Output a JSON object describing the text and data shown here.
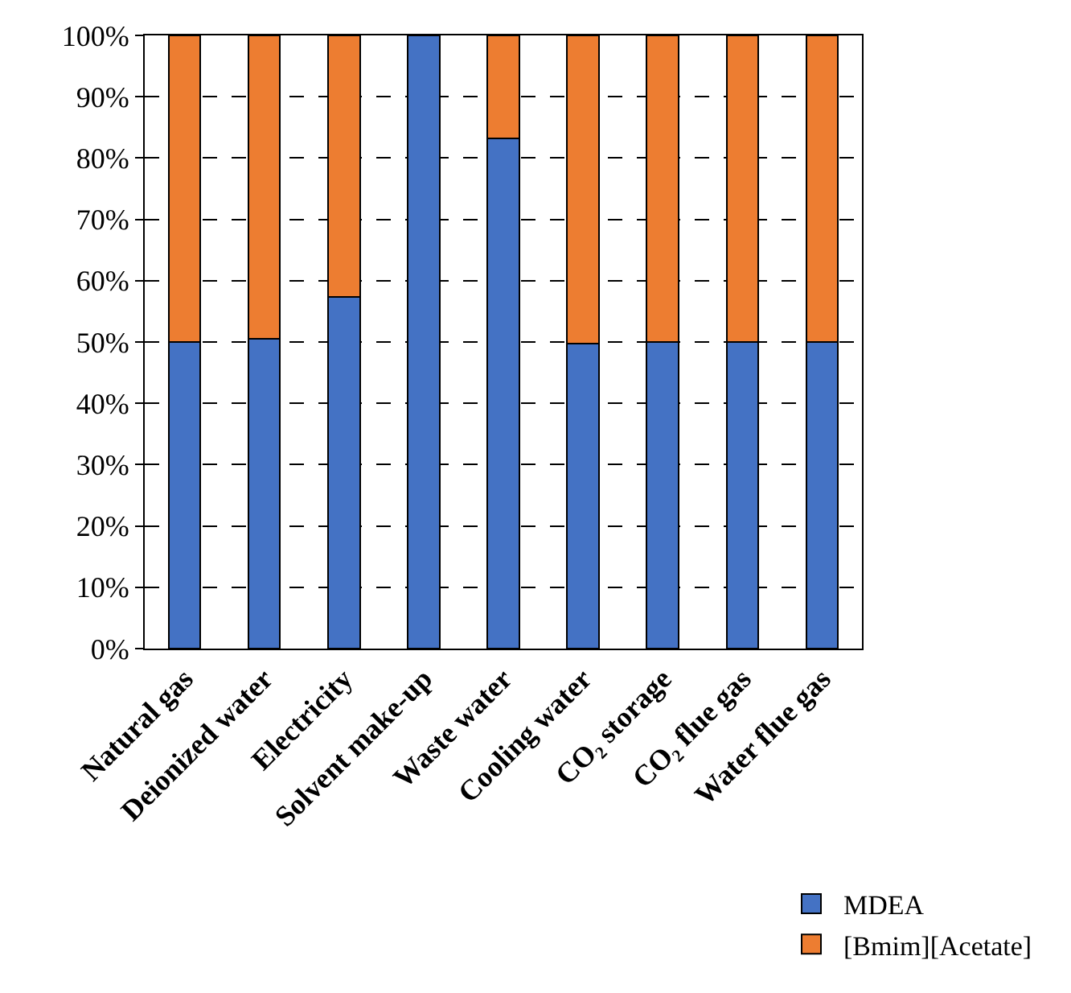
{
  "chart_data": {
    "type": "bar",
    "stacked": true,
    "categories": [
      "Natural gas",
      "Deionized water",
      "Electricity",
      "Solvent make-up",
      "Waste water",
      "Cooling water",
      "CO₂ storage",
      "CO₂ flue gas",
      "Water flue gas"
    ],
    "series": [
      {
        "name": "MDEA",
        "color": "#4472c4",
        "values": [
          50,
          50.5,
          57.3,
          100,
          83.2,
          49.8,
          50,
          50,
          50
        ]
      },
      {
        "name": "[Bmim][Acetate]",
        "color": "#ed7d31",
        "values": [
          50,
          49.5,
          42.7,
          0,
          16.8,
          50.2,
          50,
          50,
          50
        ]
      }
    ],
    "ylim": [
      0,
      100
    ],
    "yticks": [
      {
        "value": 0,
        "label": "0%"
      },
      {
        "value": 10,
        "label": "10%"
      },
      {
        "value": 20,
        "label": "20%"
      },
      {
        "value": 30,
        "label": "30%"
      },
      {
        "value": 40,
        "label": "40%"
      },
      {
        "value": 50,
        "label": "50%"
      },
      {
        "value": 60,
        "label": "60%"
      },
      {
        "value": 70,
        "label": "70%"
      },
      {
        "value": 80,
        "label": "80%"
      },
      {
        "value": 90,
        "label": "90%"
      },
      {
        "value": 100,
        "label": "100%"
      }
    ],
    "grid": "y",
    "legend": "bottom right"
  }
}
